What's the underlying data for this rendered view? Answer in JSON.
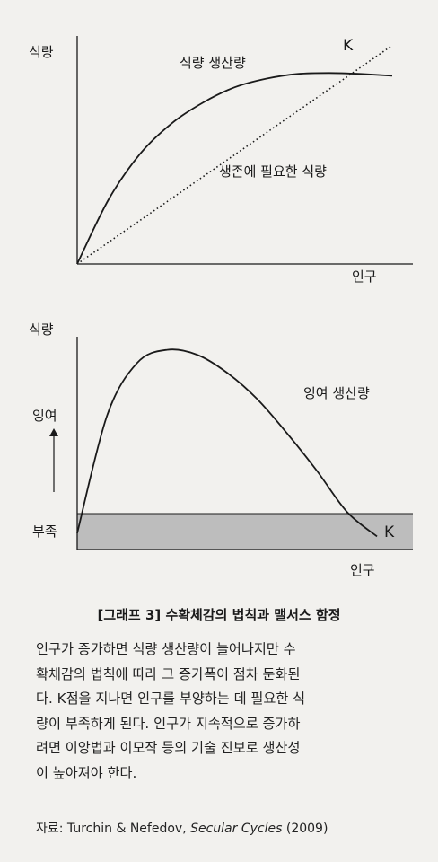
{
  "chart_data": [
    {
      "type": "line",
      "ylabel": "식량",
      "xlabel": "인구",
      "x": [
        0,
        1,
        2,
        3,
        4,
        5,
        6,
        7,
        8,
        9,
        10
      ],
      "series": [
        {
          "name": "식량 생산량",
          "style": "solid",
          "values": [
            0,
            3.4,
            5.8,
            7.4,
            8.5,
            9.3,
            9.75,
            10,
            10.05,
            10.0,
            9.9
          ]
        },
        {
          "name": "생존에 필요한 식량",
          "style": "dotted",
          "values": [
            0,
            1.15,
            2.3,
            3.45,
            4.6,
            5.75,
            6.9,
            8.05,
            9.2,
            10.35,
            11.5
          ]
        }
      ],
      "annotations": [
        {
          "text": "K",
          "x": 8.7,
          "y": 10.0
        }
      ],
      "xlim": [
        0,
        10
      ],
      "ylim": [
        0,
        12
      ]
    },
    {
      "type": "line",
      "ylabel": "식량",
      "xlabel": "인구",
      "y_tick_labels": [
        "잉여",
        "부족"
      ],
      "x": [
        0,
        1,
        2,
        3,
        4,
        5,
        6,
        7,
        8,
        9,
        10
      ],
      "series": [
        {
          "name": "잉여 생산량",
          "values": [
            0,
            7.2,
            10.4,
            11.2,
            10.9,
            9.8,
            8.2,
            6.1,
            3.8,
            1.3,
            -0.2
          ]
        }
      ],
      "shortage_band": [
        -1,
        0
      ],
      "annotations": [
        {
          "text": "K",
          "x": 10,
          "y": -0.2
        }
      ],
      "xlim": [
        0,
        10
      ],
      "ylim": [
        -1,
        12
      ]
    }
  ],
  "caption": "[그래프 3] 수확체감의 법칙과 맬서스 함정",
  "body_lines": [
    "인구가 증가하면 식량 생산량이 늘어나지만 수",
    "확체감의 법칙에 따라 그 증가폭이 점차 둔화된",
    "다. K점을 지나면 인구를 부양하는 데 필요한 식",
    "량이 부족하게 된다. 인구가 지속적으로 증가하",
    "려면 이앙법과 이모작 등의 기술 진보로 생산성",
    "이 높아져야 한다."
  ],
  "source_prefix": "자료: Turchin & Nefedov, ",
  "source_title": "Secular Cycles",
  "source_suffix": " (2009)",
  "colors": {
    "background": "#f2f1ee",
    "shortage_band": "#bdbdbd",
    "line": "#1a1a1a"
  }
}
